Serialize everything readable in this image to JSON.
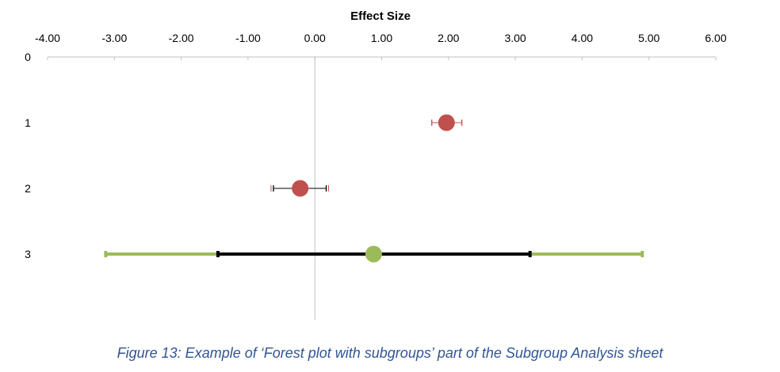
{
  "chart_data": {
    "type": "scatter",
    "title": "Effect Size",
    "x_tick_labels": [
      "-4.00",
      "-3.00",
      "-2.00",
      "-1.00",
      "0.00",
      "1.00",
      "2.00",
      "3.00",
      "4.00",
      "5.00",
      "6.00"
    ],
    "y_tick_labels": [
      "0",
      "1",
      "2",
      "3"
    ],
    "xlim": [
      -4,
      6
    ],
    "ylim": [
      0,
      4
    ],
    "y_reversed": true,
    "x_axis_position": "top",
    "grid": false,
    "reference_line_x": 0,
    "points": [
      {
        "row": 1,
        "effect": 1.97,
        "ci_lower": 1.75,
        "ci_upper": 2.2,
        "marker_color": "#c0504d",
        "ci_color": "#c0504d"
      },
      {
        "row": 2,
        "effect": -0.22,
        "ci_lower": -0.62,
        "ci_upper": 0.17,
        "marker_color": "#c0504d",
        "ci_color": "#000000",
        "outer_cap_color": "#c0504d"
      },
      {
        "row": 3,
        "effect": 0.88,
        "ci_lower": -1.45,
        "ci_upper": 3.22,
        "pi_lower": -3.13,
        "pi_upper": 4.9,
        "marker_color": "#9bbb59",
        "ci_color": "#000000",
        "pi_color": "#9bbb59"
      }
    ]
  },
  "caption": "Figure 13: Example of ‘Forest plot with subgroups’ part of the Subgroup Analysis sheet",
  "colors": {
    "axis": "#bfbfbf",
    "caption": "#2f5597"
  }
}
